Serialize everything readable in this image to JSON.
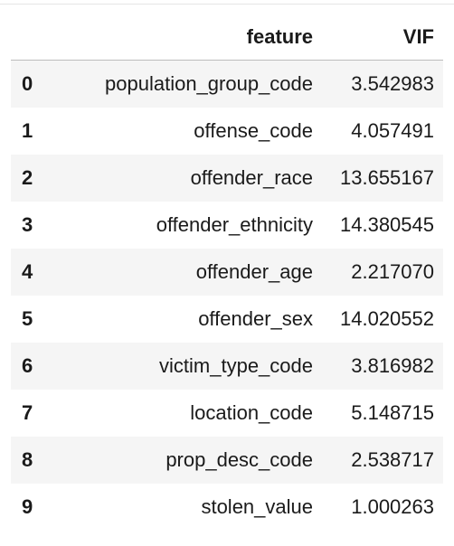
{
  "table": {
    "columns": [
      "",
      "feature",
      "VIF"
    ],
    "rows": [
      {
        "index": "0",
        "feature": "population_group_code",
        "vif": "3.542983"
      },
      {
        "index": "1",
        "feature": "offense_code",
        "vif": "4.057491"
      },
      {
        "index": "2",
        "feature": "offender_race",
        "vif": "13.655167"
      },
      {
        "index": "3",
        "feature": "offender_ethnicity",
        "vif": "14.380545"
      },
      {
        "index": "4",
        "feature": "offender_age",
        "vif": "2.217070"
      },
      {
        "index": "5",
        "feature": "offender_sex",
        "vif": "14.020552"
      },
      {
        "index": "6",
        "feature": "victim_type_code",
        "vif": "3.816982"
      },
      {
        "index": "7",
        "feature": "location_code",
        "vif": "5.148715"
      },
      {
        "index": "8",
        "feature": "prop_desc_code",
        "vif": "2.538717"
      },
      {
        "index": "9",
        "feature": "stolen_value",
        "vif": "1.000263"
      }
    ]
  }
}
